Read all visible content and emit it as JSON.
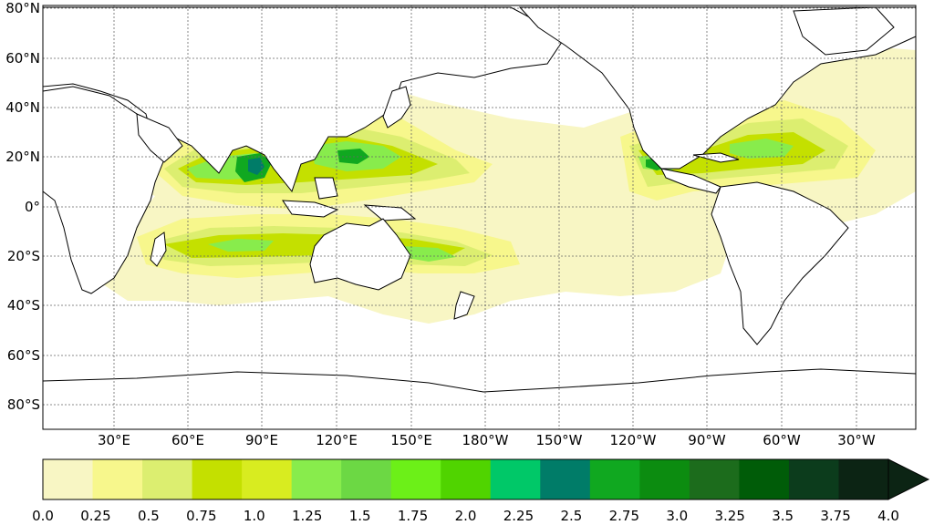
{
  "map": {
    "lat_labels": [
      "80°N",
      "60°N",
      "40°N",
      "20°N",
      "0°",
      "20°S",
      "40°S",
      "60°S",
      "80°S"
    ],
    "lon_labels": [
      "30°E",
      "60°E",
      "90°E",
      "120°E",
      "150°E",
      "180°W",
      "150°W",
      "120°W",
      "90°W",
      "60°W",
      "30°W"
    ]
  },
  "colorbar": {
    "tick_labels": [
      "0.0",
      "0.25",
      "0.5",
      "0.75",
      "1.0",
      "1.25",
      "1.5",
      "1.75",
      "2.0",
      "2.25",
      "2.5",
      "2.75",
      "3.0",
      "3.25",
      "3.5",
      "3.75",
      "4.0"
    ],
    "colors": [
      "#f8f6c4",
      "#f7f78c",
      "#dcee70",
      "#c4e000",
      "#d8ec20",
      "#88ec4c",
      "#6cd844",
      "#6cf018",
      "#50d400",
      "#00c868",
      "#007c68",
      "#10a820",
      "#0c8c10",
      "#1c6c1c",
      "#005c08",
      "#0c3c1c",
      "#0c2414"
    ],
    "extend": "max"
  },
  "field_colors": {
    "lightest": "#f8f6c4",
    "light": "#f7f78c",
    "mid": "#dcee70",
    "strong": "#c4e000",
    "green": "#88ec4c",
    "deep": "#10a820",
    "core": "#007c68"
  },
  "land_color": "#ffffff",
  "coast_color": "#000000",
  "grid_color": "#666666"
}
